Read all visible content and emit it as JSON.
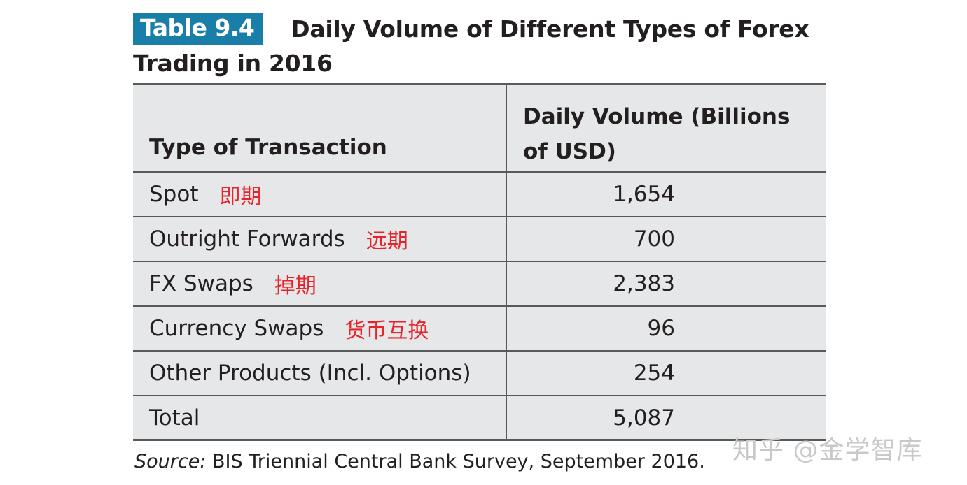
{
  "title": {
    "badge": "Table 9.4",
    "line1": "Daily Volume of Different Types of Forex",
    "line2": "Trading in 2016"
  },
  "table": {
    "headers": {
      "col1": "Type of Transaction",
      "col2_line1": "Daily Volume (Billions",
      "col2_line2": "of USD)"
    },
    "rows": [
      {
        "type": "Spot",
        "annotation": "即期",
        "volume": "1,654"
      },
      {
        "type": "Outright Forwards",
        "annotation": "远期",
        "volume": "700"
      },
      {
        "type": "FX Swaps",
        "annotation": "掉期",
        "volume": "2,383"
      },
      {
        "type": "Currency Swaps",
        "annotation": "货币互换",
        "volume": "96"
      },
      {
        "type": "Other Products (Incl. Options)",
        "annotation": "",
        "volume": "254"
      },
      {
        "type": "Total",
        "annotation": "",
        "volume": "5,087"
      }
    ]
  },
  "source": {
    "label": "Source:",
    "text": " BIS Triennial Central Bank Survey, September 2016."
  },
  "watermark": "知乎 @金学智库",
  "colors": {
    "badge": "#1a7fa8",
    "annotation": "#e8242b",
    "table_bg": "#e6e7e8",
    "rule": "#58595b"
  }
}
